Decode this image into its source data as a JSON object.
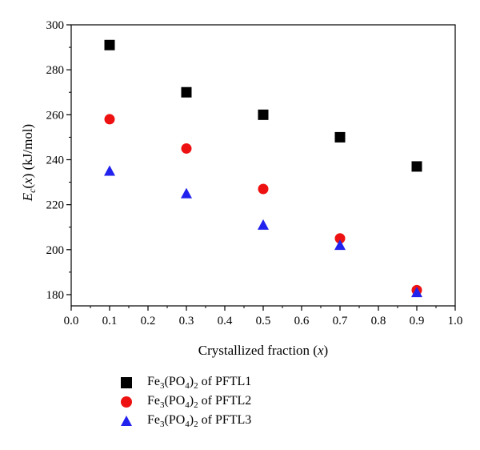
{
  "chart_data": {
    "type": "scatter",
    "title": "",
    "xlabel": "Crystallized fraction (x)",
    "ylabel": "E_c(x) (kJ/mol)",
    "xlim": [
      0.0,
      1.0
    ],
    "ylim": [
      175,
      300
    ],
    "x_ticks": [
      0.0,
      0.1,
      0.2,
      0.3,
      0.4,
      0.5,
      0.6,
      0.7,
      0.8,
      0.9,
      1.0
    ],
    "y_ticks": [
      180,
      200,
      220,
      240,
      260,
      280,
      300
    ],
    "grid": false,
    "legend_position": "bottom-left, below plot",
    "series": [
      {
        "name": "Fe3(PO4)2 of PFTL1",
        "marker": "square",
        "color": "#000000",
        "x": [
          0.1,
          0.3,
          0.5,
          0.7,
          0.9
        ],
        "y": [
          291,
          270,
          260,
          250,
          237
        ]
      },
      {
        "name": "Fe3(PO4)2 of PFTL2",
        "marker": "circle",
        "color": "#ee1111",
        "x": [
          0.1,
          0.3,
          0.5,
          0.7,
          0.9
        ],
        "y": [
          258,
          245,
          227,
          205,
          182
        ]
      },
      {
        "name": "Fe3(PO4)2 of PFTL3",
        "marker": "triangle",
        "color": "#2222ee",
        "x": [
          0.1,
          0.3,
          0.5,
          0.7,
          0.9
        ],
        "y": [
          235,
          225,
          211,
          202,
          181
        ]
      }
    ]
  },
  "legend": {
    "items": [
      {
        "formula_a": "Fe",
        "sub_a": "3",
        "formula_b": "(PO",
        "sub_b": "4",
        "formula_c": ")",
        "sub_c": "2",
        "suffix": " of PFTL1"
      },
      {
        "formula_a": "Fe",
        "sub_a": "3",
        "formula_b": "(PO",
        "sub_b": "4",
        "formula_c": ")",
        "sub_c": "2",
        "suffix": " of PFTL2"
      },
      {
        "formula_a": "Fe",
        "sub_a": "3",
        "formula_b": "(PO",
        "sub_b": "4",
        "formula_c": ")",
        "sub_c": "2",
        "suffix": " of PFTL3"
      }
    ]
  },
  "axis_text": {
    "x_main": "Crystallized fraction (",
    "x_var": "x",
    "x_end": ")",
    "y_E": "E",
    "y_sub": "c",
    "y_paren1": "(",
    "y_var": "x",
    "y_rest": ") (kJ/mol)"
  }
}
